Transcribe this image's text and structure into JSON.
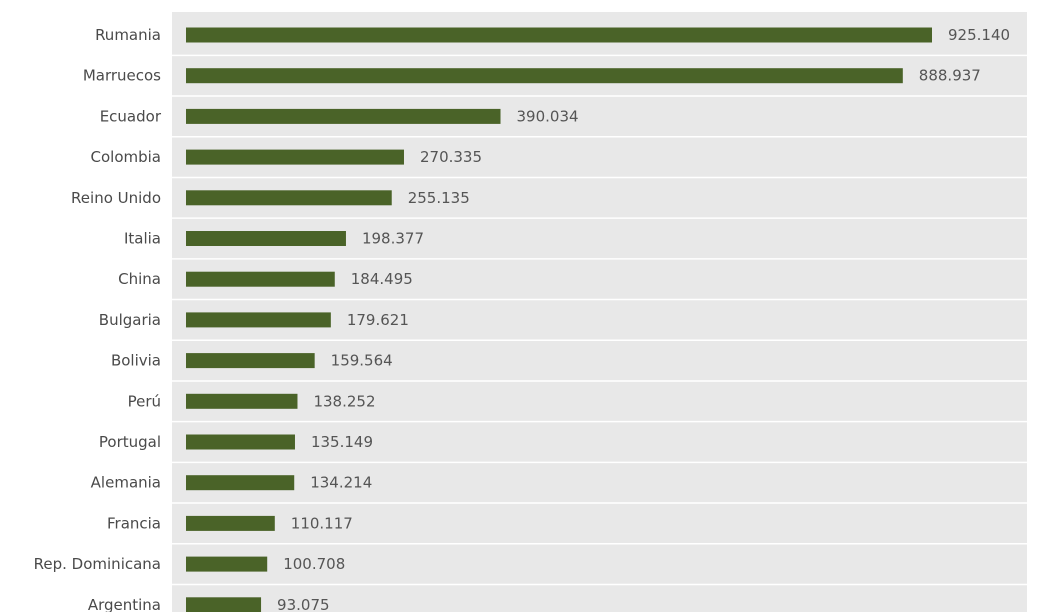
{
  "chart_data": {
    "type": "bar",
    "orientation": "horizontal",
    "title": "",
    "xlabel": "",
    "ylabel": "",
    "grid": false,
    "legend": "none",
    "categories": [
      "Rumania",
      "Marruecos",
      "Ecuador",
      "Colombia",
      "Reino Unido",
      "Italia",
      "China",
      "Bulgaria",
      "Bolivia",
      "Perú",
      "Portugal",
      "Alemania",
      "Francia",
      "Rep. Dominicana",
      "Argentina"
    ],
    "values": [
      925140,
      888937,
      390034,
      270335,
      255135,
      198377,
      184495,
      179621,
      159564,
      138252,
      135149,
      134214,
      110117,
      100708,
      93075
    ],
    "value_labels": [
      "925.140",
      "888.937",
      "390.034",
      "270.335",
      "255.135",
      "198.377",
      "184.495",
      "179.621",
      "159.564",
      "138.252",
      "135.149",
      "134.214",
      "110.117",
      "100.708",
      "93.075"
    ],
    "xlim": [
      0,
      1000000
    ],
    "colors": {
      "bar": "#4a6328",
      "background": "#e8e8e8",
      "separator": "#ffffff"
    }
  }
}
